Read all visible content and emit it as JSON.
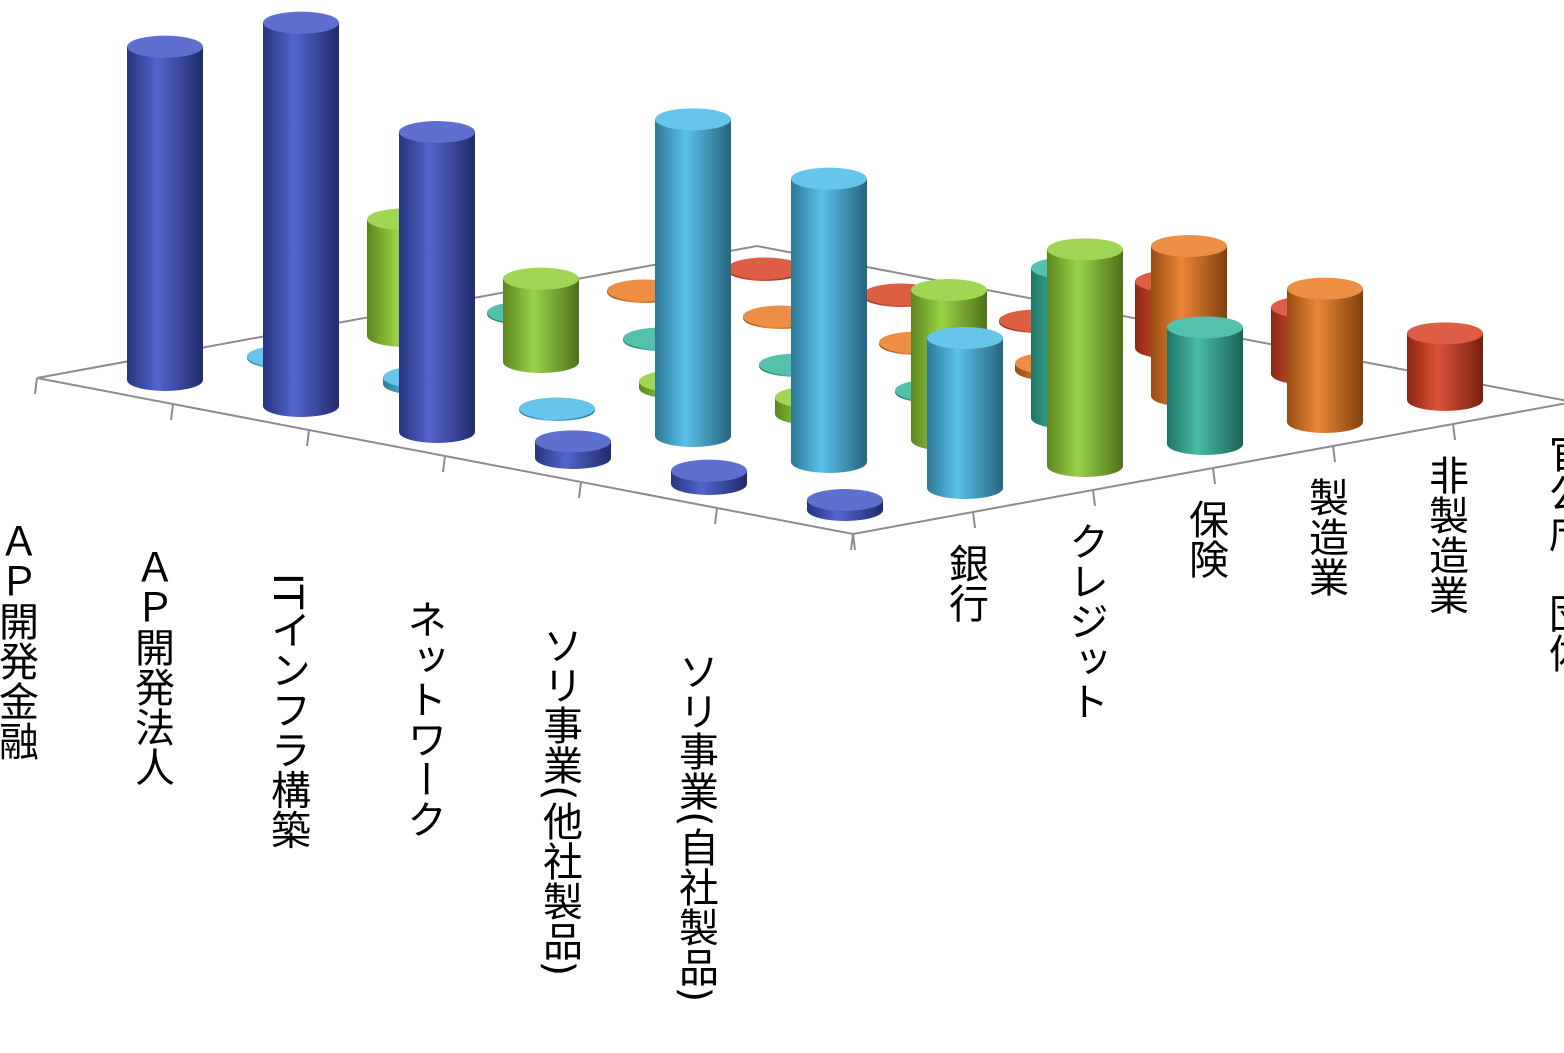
{
  "chart_data": {
    "type": "bar3d",
    "shape": "cylinder",
    "title": "",
    "categories": [
      "ＡＰ開発金融",
      "ＡＰ開発法人",
      "ITインフラ構築",
      "ネットワーク",
      "ソリ事業(他社製品)",
      "ソリ事業(自社製品)"
    ],
    "series": [
      {
        "name": "銀行",
        "color": "#3b4fc4",
        "values": [
          10,
          11.5,
          9,
          0.5,
          0.4,
          0.3
        ]
      },
      {
        "name": "クレジット",
        "color": "#45b8e6",
        "values": [
          0,
          0.2,
          0,
          9.5,
          8.5,
          4.5
        ]
      },
      {
        "name": "保険",
        "color": "#8ccd2e",
        "values": [
          3.5,
          2.5,
          0.2,
          0.5,
          4.5,
          6.5
        ]
      },
      {
        "name": "製造業",
        "color": "#2fb39a",
        "values": [
          0,
          0,
          0,
          0,
          4.5,
          3.5
        ]
      },
      {
        "name": "非製造業",
        "color": "#e8751a",
        "values": [
          0,
          0,
          0,
          0.2,
          4.5,
          4
        ]
      },
      {
        "name": "官公庁、団体",
        "color": "#d63a1c",
        "values": [
          0,
          0,
          0,
          2,
          2,
          2
        ]
      }
    ],
    "zlim": [
      0,
      12
    ],
    "grid": false,
    "legend": "none"
  }
}
